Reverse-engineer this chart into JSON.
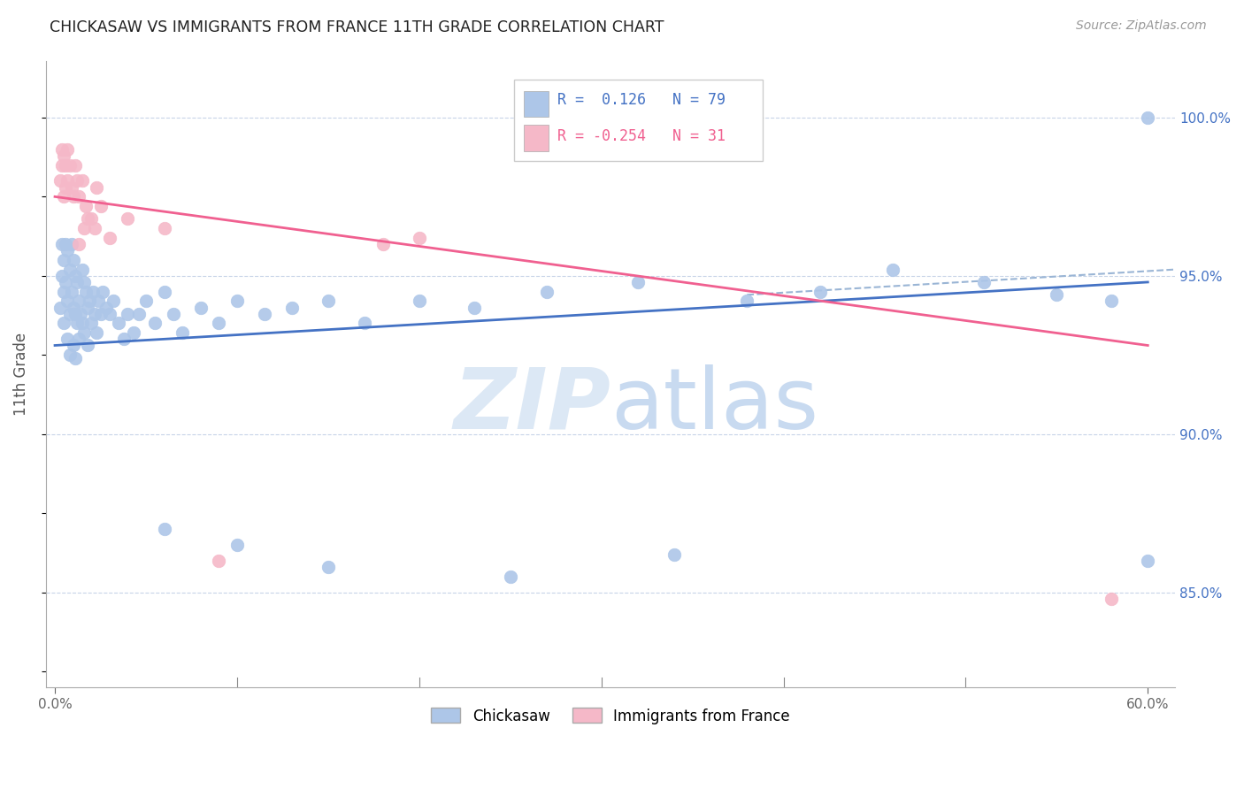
{
  "title": "CHICKASAW VS IMMIGRANTS FROM FRANCE 11TH GRADE CORRELATION CHART",
  "source": "Source: ZipAtlas.com",
  "ylabel": "11th Grade",
  "right_yticks": [
    "100.0%",
    "95.0%",
    "90.0%",
    "85.0%"
  ],
  "right_ytick_vals": [
    1.0,
    0.95,
    0.9,
    0.85
  ],
  "legend_blue_label": "Chickasaw",
  "legend_pink_label": "Immigrants from France",
  "R_blue": 0.126,
  "N_blue": 79,
  "R_pink": -0.254,
  "N_pink": 31,
  "blue_scatter_color": "#adc6e8",
  "pink_scatter_color": "#f5b8c8",
  "blue_line_color": "#4472c4",
  "pink_line_color": "#f06090",
  "dashed_line_color": "#9ab5d5",
  "grid_color": "#c8d4e8",
  "watermark_color": "#dce8f5",
  "title_color": "#222222",
  "source_color": "#999999",
  "ylabel_color": "#555555",
  "right_tick_color": "#4472c4",
  "xlim_min": -0.005,
  "xlim_max": 0.615,
  "ylim_min": 0.82,
  "ylim_max": 1.018,
  "blue_line_x": [
    0.0,
    0.6
  ],
  "blue_line_y": [
    0.928,
    0.948
  ],
  "pink_line_x": [
    0.0,
    0.6
  ],
  "pink_line_y": [
    0.975,
    0.928
  ],
  "dash_line_x": [
    0.38,
    0.615
  ],
  "dash_line_y": [
    0.944,
    0.952
  ],
  "blue_scatter_x": [
    0.003,
    0.004,
    0.004,
    0.005,
    0.005,
    0.005,
    0.006,
    0.006,
    0.007,
    0.007,
    0.007,
    0.008,
    0.008,
    0.008,
    0.009,
    0.009,
    0.01,
    0.01,
    0.01,
    0.011,
    0.011,
    0.011,
    0.012,
    0.012,
    0.013,
    0.013,
    0.014,
    0.015,
    0.015,
    0.016,
    0.016,
    0.017,
    0.018,
    0.018,
    0.019,
    0.02,
    0.021,
    0.022,
    0.023,
    0.024,
    0.025,
    0.026,
    0.028,
    0.03,
    0.032,
    0.035,
    0.038,
    0.04,
    0.043,
    0.046,
    0.05,
    0.055,
    0.06,
    0.065,
    0.07,
    0.08,
    0.09,
    0.1,
    0.115,
    0.13,
    0.15,
    0.17,
    0.2,
    0.23,
    0.27,
    0.32,
    0.38,
    0.42,
    0.46,
    0.51,
    0.55,
    0.58,
    0.6,
    0.06,
    0.1,
    0.15,
    0.25,
    0.34,
    0.6
  ],
  "blue_scatter_y": [
    0.94,
    0.96,
    0.95,
    0.955,
    0.945,
    0.935,
    0.96,
    0.948,
    0.958,
    0.942,
    0.93,
    0.952,
    0.938,
    0.925,
    0.96,
    0.945,
    0.955,
    0.94,
    0.928,
    0.95,
    0.938,
    0.924,
    0.948,
    0.935,
    0.942,
    0.93,
    0.938,
    0.952,
    0.935,
    0.948,
    0.932,
    0.945,
    0.94,
    0.928,
    0.942,
    0.935,
    0.945,
    0.938,
    0.932,
    0.942,
    0.938,
    0.945,
    0.94,
    0.938,
    0.942,
    0.935,
    0.93,
    0.938,
    0.932,
    0.938,
    0.942,
    0.935,
    0.945,
    0.938,
    0.932,
    0.94,
    0.935,
    0.942,
    0.938,
    0.94,
    0.942,
    0.935,
    0.942,
    0.94,
    0.945,
    0.948,
    0.942,
    0.945,
    0.952,
    0.948,
    0.944,
    0.942,
    1.0,
    0.87,
    0.865,
    0.858,
    0.855,
    0.862,
    0.86
  ],
  "pink_scatter_x": [
    0.003,
    0.004,
    0.004,
    0.005,
    0.005,
    0.006,
    0.006,
    0.007,
    0.007,
    0.008,
    0.009,
    0.01,
    0.011,
    0.012,
    0.013,
    0.015,
    0.017,
    0.02,
    0.023,
    0.025,
    0.013,
    0.016,
    0.018,
    0.022,
    0.03,
    0.04,
    0.06,
    0.09,
    0.18,
    0.2,
    0.58
  ],
  "pink_scatter_y": [
    0.98,
    0.99,
    0.985,
    0.988,
    0.975,
    0.985,
    0.978,
    0.99,
    0.98,
    0.985,
    0.978,
    0.975,
    0.985,
    0.98,
    0.975,
    0.98,
    0.972,
    0.968,
    0.978,
    0.972,
    0.96,
    0.965,
    0.968,
    0.965,
    0.962,
    0.968,
    0.965,
    0.86,
    0.96,
    0.962,
    0.848
  ]
}
